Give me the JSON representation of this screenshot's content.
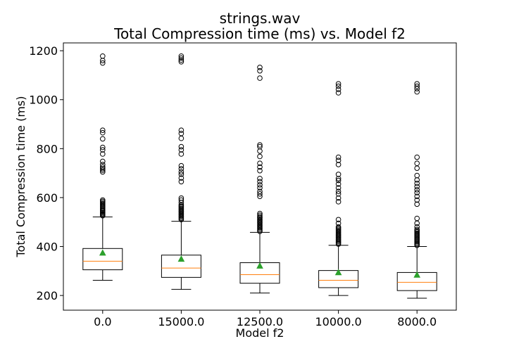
{
  "chart_data": {
    "type": "box",
    "title_line1": "strings.wav",
    "title_line2": "Total Compression time (ms) vs. Model f2",
    "xlabel": "Model f2",
    "ylabel": "Total Compression time (ms)",
    "ylim": [
      140,
      1232
    ],
    "yticks": [
      200,
      400,
      600,
      800,
      1000,
      1200
    ],
    "categories": [
      "0.0",
      "15000.0",
      "12500.0",
      "10000.0",
      "8000.0"
    ],
    "boxes": [
      {
        "category": "0.0",
        "whisker_low": 262,
        "q1": 305,
        "median": 340,
        "q3": 392,
        "whisker_high": 521,
        "mean": 373,
        "outliers": [
          526,
          530,
          534,
          538,
          542,
          546,
          550,
          555,
          560,
          565,
          570,
          575,
          580,
          585,
          590,
          705,
          712,
          718,
          725,
          735,
          748,
          778,
          795,
          805,
          840,
          865,
          875,
          1150,
          1160,
          1178
        ]
      },
      {
        "category": "15000.0",
        "whisker_low": 225,
        "q1": 274,
        "median": 312,
        "q3": 365,
        "whisker_high": 503,
        "mean": 348,
        "outliers": [
          510,
          515,
          520,
          525,
          530,
          535,
          540,
          545,
          550,
          555,
          560,
          565,
          570,
          580,
          590,
          598,
          665,
          680,
          695,
          705,
          718,
          730,
          778,
          795,
          808,
          842,
          862,
          875,
          1155,
          1162,
          1170,
          1178
        ]
      },
      {
        "category": "12500.0",
        "whisker_low": 210,
        "q1": 250,
        "median": 285,
        "q3": 334,
        "whisker_high": 458,
        "mean": 320,
        "outliers": [
          462,
          467,
          472,
          477,
          482,
          487,
          492,
          497,
          502,
          507,
          512,
          517,
          522,
          528,
          535,
          605,
          615,
          625,
          640,
          652,
          665,
          678,
          710,
          725,
          740,
          768,
          790,
          808,
          815,
          1088,
          1118,
          1132
        ]
      },
      {
        "category": "10000.0",
        "whisker_low": 200,
        "q1": 232,
        "median": 262,
        "q3": 302,
        "whisker_high": 405,
        "mean": 293,
        "outliers": [
          410,
          415,
          420,
          425,
          430,
          435,
          440,
          445,
          450,
          455,
          460,
          465,
          470,
          475,
          480,
          495,
          510,
          583,
          598,
          615,
          625,
          640,
          655,
          670,
          678,
          695,
          735,
          752,
          765,
          1028,
          1042,
          1055,
          1065
        ]
      },
      {
        "category": "8000.0",
        "whisker_low": 189,
        "q1": 220,
        "median": 254,
        "q3": 294,
        "whisker_high": 400,
        "mean": 283,
        "outliers": [
          405,
          410,
          415,
          420,
          425,
          430,
          435,
          440,
          445,
          450,
          455,
          460,
          465,
          470,
          480,
          495,
          515,
          573,
          590,
          605,
          620,
          632,
          645,
          658,
          672,
          690,
          720,
          740,
          765,
          1032,
          1045,
          1055,
          1065
        ]
      }
    ],
    "colors": {
      "box": "#000000",
      "median": "#ff7f0e",
      "mean": "#2ca02c",
      "outlier_edge": "#000000"
    },
    "grid": false,
    "legend": "none"
  }
}
